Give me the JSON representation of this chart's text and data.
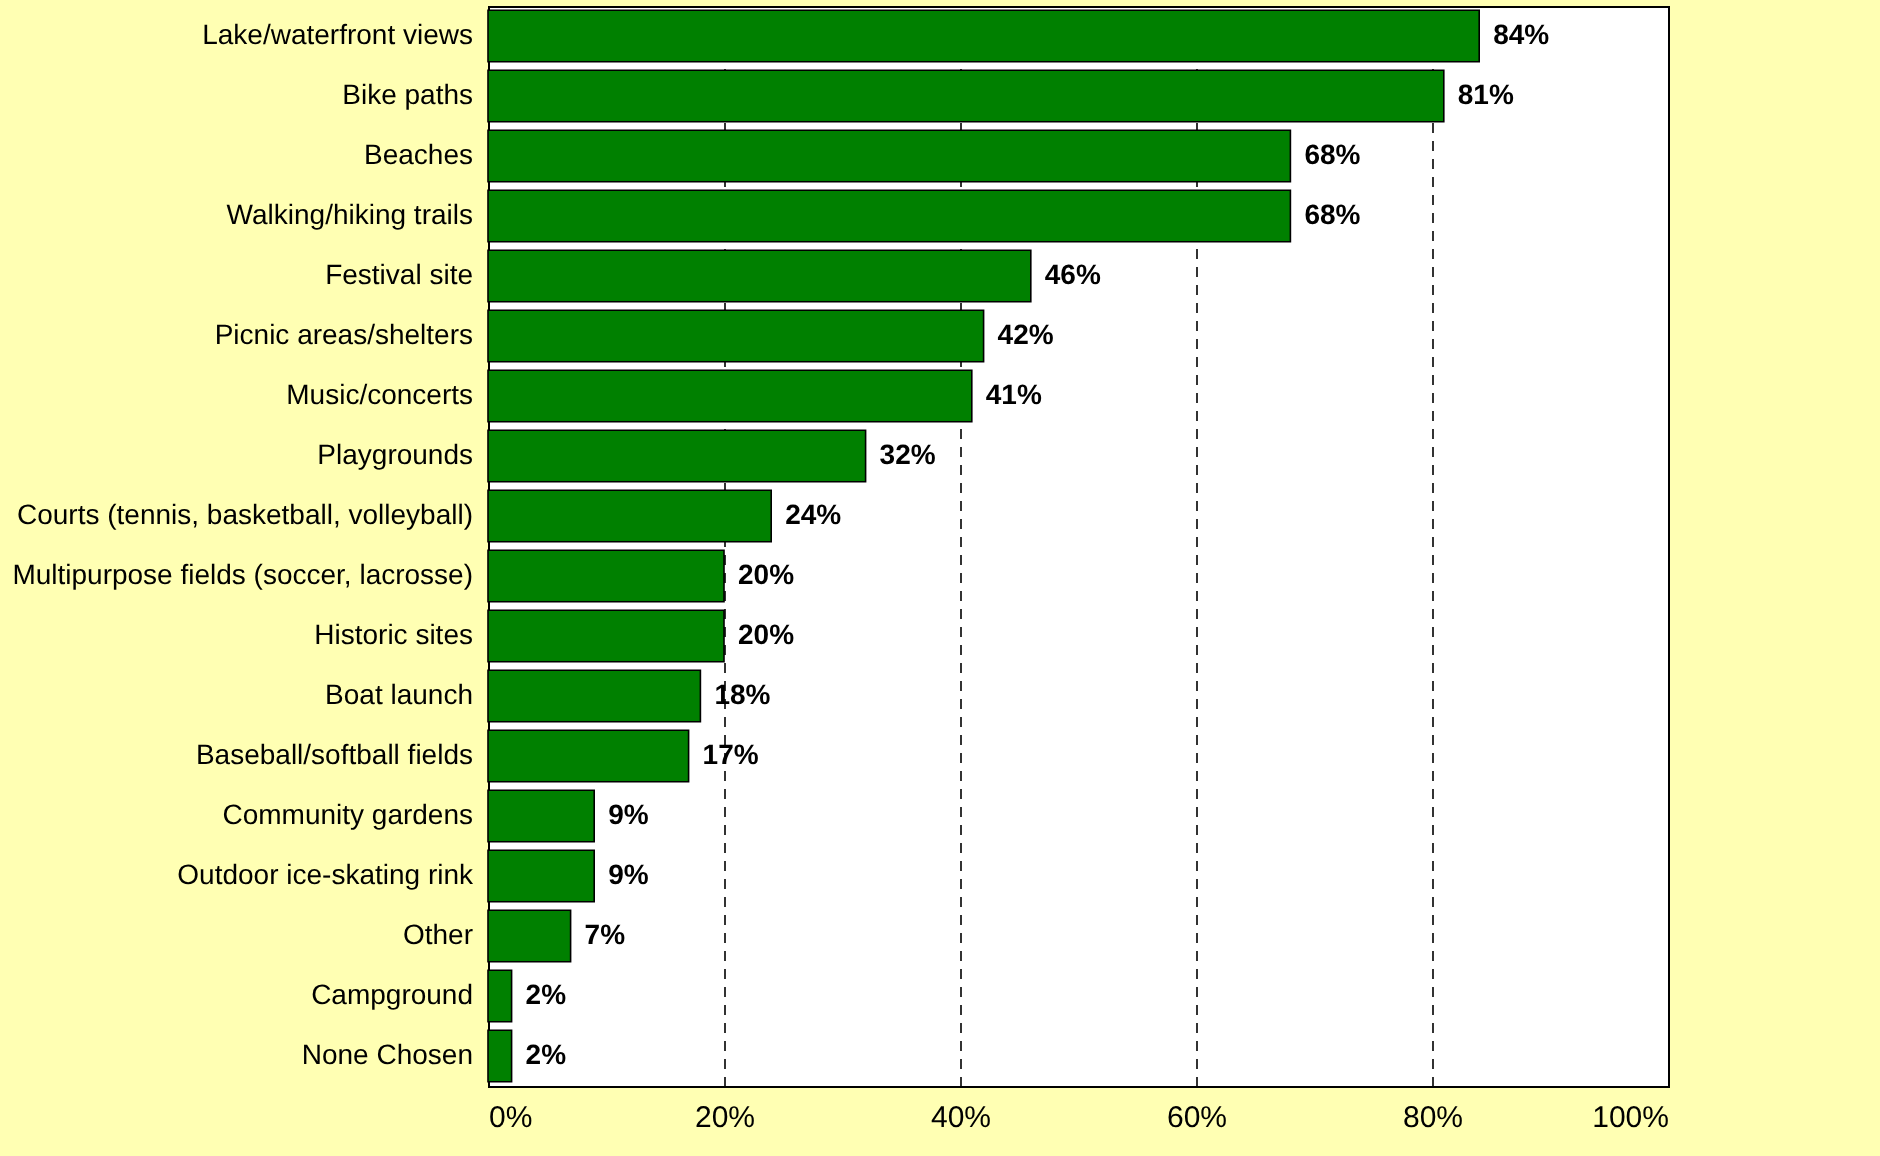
{
  "chart_data": {
    "type": "bar",
    "orientation": "horizontal",
    "categories": [
      "Lake/waterfront views",
      "Bike paths",
      "Beaches",
      "Walking/hiking trails",
      "Festival site",
      "Picnic areas/shelters",
      "Music/concerts",
      "Playgrounds",
      "Courts (tennis, basketball, volleyball)",
      "Multipurpose fields (soccer, lacrosse)",
      "Historic sites",
      "Boat launch",
      "Baseball/softball fields",
      "Community gardens",
      "Outdoor ice-skating rink",
      "Other",
      "Campground",
      "None Chosen"
    ],
    "values": [
      84,
      81,
      68,
      68,
      46,
      42,
      41,
      32,
      24,
      20,
      20,
      18,
      17,
      9,
      9,
      7,
      2,
      2
    ],
    "value_labels": [
      "84%",
      "81%",
      "68%",
      "68%",
      "46%",
      "42%",
      "41%",
      "32%",
      "24%",
      "20%",
      "20%",
      "18%",
      "17%",
      "9%",
      "9%",
      "7%",
      "2%",
      "2%"
    ],
    "color": "#008000",
    "xlim": [
      0,
      100
    ],
    "xticks": [
      {
        "value": 0,
        "label": "0%"
      },
      {
        "value": 20,
        "label": "20%"
      },
      {
        "value": 40,
        "label": "40%"
      },
      {
        "value": 60,
        "label": "60%"
      },
      {
        "value": 80,
        "label": "80%"
      },
      {
        "value": 100,
        "label": "100%"
      }
    ],
    "grid": "x"
  }
}
